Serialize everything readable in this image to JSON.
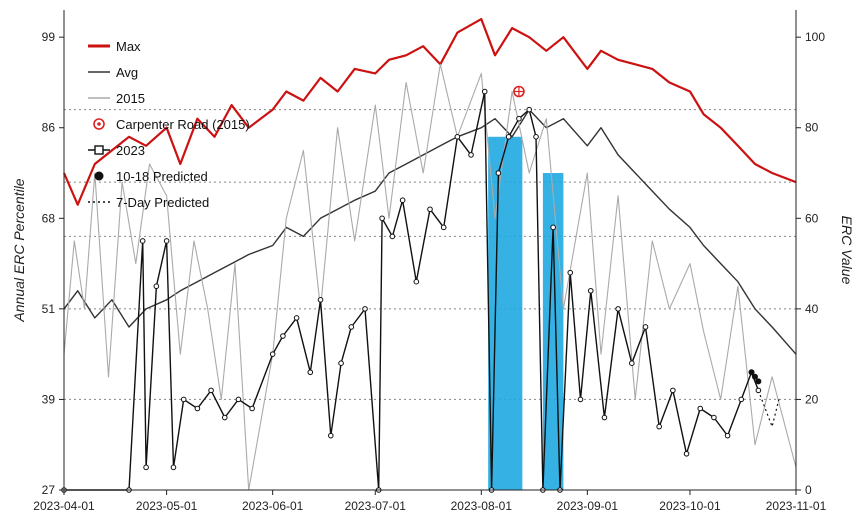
{
  "chart_data": {
    "type": "line",
    "title": "",
    "xlabel": "",
    "ylabel_left": "Annual ERC Percentile",
    "ylabel_right": "ERC Value",
    "x_tick_labels": [
      "2023-04-01",
      "2023-05-01",
      "2023-06-01",
      "2023-07-01",
      "2023-08-01",
      "2023-09-01",
      "2023-10-01",
      "2023-11-01"
    ],
    "left_tick_labels": [
      "27",
      "39",
      "51",
      "68",
      "86",
      "99"
    ],
    "left_tick_erc_positions": [
      0,
      20,
      40,
      60,
      80,
      100
    ],
    "right_tick_labels": [
      "0",
      "20",
      "40",
      "60",
      "80",
      "100"
    ],
    "ylim": [
      0,
      106
    ],
    "xlim": [
      "2023-04-01",
      "2023-11-01"
    ],
    "grid": "horizontal dotted at 20, 40, 60, 80 and ~84 ERC",
    "reference_levels": [
      20,
      40,
      56,
      68,
      84
    ],
    "legend": {
      "placement": "top-left",
      "entries": [
        {
          "label": "Max",
          "color": "#cc1111",
          "style": "thick-line"
        },
        {
          "label": "Avg",
          "color": "#333333",
          "style": "line"
        },
        {
          "label": "2015",
          "color": "#aaaaaa",
          "style": "line"
        },
        {
          "label": "Carpenter Road (2015)",
          "color": "#dd2222",
          "style": "target-marker"
        },
        {
          "label": "2023",
          "color": "#111111",
          "style": "line-open-square"
        },
        {
          "label": "10-18 Predicted",
          "color": "#111111",
          "style": "filled-circle"
        },
        {
          "label": "7-Day Predicted",
          "color": "#111111",
          "style": "dotted"
        }
      ]
    },
    "series": [
      {
        "name": "Max",
        "color": "#cc1111",
        "x": [
          "2023-04-01",
          "2023-04-05",
          "2023-04-10",
          "2023-04-15",
          "2023-04-20",
          "2023-04-25",
          "2023-05-01",
          "2023-05-05",
          "2023-05-10",
          "2023-05-15",
          "2023-05-20",
          "2023-05-25",
          "2023-06-01",
          "2023-06-05",
          "2023-06-10",
          "2023-06-15",
          "2023-06-20",
          "2023-06-25",
          "2023-07-01",
          "2023-07-05",
          "2023-07-10",
          "2023-07-15",
          "2023-07-20",
          "2023-07-25",
          "2023-08-01",
          "2023-08-05",
          "2023-08-10",
          "2023-08-15",
          "2023-08-20",
          "2023-08-25",
          "2023-09-01",
          "2023-09-05",
          "2023-09-10",
          "2023-09-15",
          "2023-09-20",
          "2023-09-25",
          "2023-10-01",
          "2023-10-05",
          "2023-10-10",
          "2023-10-15",
          "2023-10-20",
          "2023-10-25",
          "2023-11-01"
        ],
        "y": [
          70,
          63,
          72,
          75,
          78,
          76,
          80,
          72,
          82,
          78,
          85,
          80,
          84,
          88,
          86,
          91,
          88,
          93,
          92,
          95,
          96,
          98,
          94,
          101,
          104,
          96,
          102,
          100,
          97,
          100,
          93,
          97,
          95,
          94,
          93,
          90,
          88,
          83,
          80,
          76,
          72,
          70,
          68
        ]
      },
      {
        "name": "Avg",
        "color": "#333333",
        "x": [
          "2023-04-01",
          "2023-04-05",
          "2023-04-10",
          "2023-04-15",
          "2023-04-20",
          "2023-04-25",
          "2023-05-01",
          "2023-05-05",
          "2023-05-10",
          "2023-05-15",
          "2023-05-20",
          "2023-05-25",
          "2023-06-01",
          "2023-06-05",
          "2023-06-10",
          "2023-06-15",
          "2023-06-20",
          "2023-06-25",
          "2023-07-01",
          "2023-07-05",
          "2023-07-10",
          "2023-07-15",
          "2023-07-20",
          "2023-07-25",
          "2023-08-01",
          "2023-08-05",
          "2023-08-10",
          "2023-08-15",
          "2023-08-20",
          "2023-08-25",
          "2023-09-01",
          "2023-09-05",
          "2023-09-10",
          "2023-09-15",
          "2023-09-20",
          "2023-09-25",
          "2023-10-01",
          "2023-10-05",
          "2023-10-10",
          "2023-10-15",
          "2023-10-20",
          "2023-10-25",
          "2023-11-01"
        ],
        "y": [
          40,
          44,
          38,
          42,
          36,
          40,
          42,
          44,
          46,
          48,
          50,
          52,
          54,
          58,
          56,
          60,
          62,
          64,
          66,
          70,
          72,
          74,
          76,
          78,
          80,
          82,
          78,
          84,
          80,
          82,
          76,
          80,
          74,
          70,
          66,
          62,
          58,
          54,
          50,
          46,
          40,
          36,
          30
        ]
      },
      {
        "name": "2015",
        "color": "#aaaaaa",
        "x": [
          "2023-04-01",
          "2023-04-04",
          "2023-04-07",
          "2023-04-10",
          "2023-04-14",
          "2023-04-18",
          "2023-04-22",
          "2023-04-26",
          "2023-05-01",
          "2023-05-05",
          "2023-05-09",
          "2023-05-13",
          "2023-05-17",
          "2023-05-21",
          "2023-05-25",
          "2023-06-01",
          "2023-06-05",
          "2023-06-10",
          "2023-06-15",
          "2023-06-20",
          "2023-06-25",
          "2023-07-01",
          "2023-07-05",
          "2023-07-10",
          "2023-07-15",
          "2023-07-20",
          "2023-07-25",
          "2023-08-01",
          "2023-08-05",
          "2023-08-10",
          "2023-08-15",
          "2023-08-20",
          "2023-08-25",
          "2023-09-01",
          "2023-09-05",
          "2023-09-10",
          "2023-09-15",
          "2023-09-20",
          "2023-09-25",
          "2023-10-01",
          "2023-10-05",
          "2023-10-10",
          "2023-10-15",
          "2023-10-20",
          "2023-10-25",
          "2023-11-01"
        ],
        "y": [
          30,
          55,
          40,
          70,
          25,
          68,
          50,
          72,
          65,
          30,
          55,
          40,
          20,
          50,
          0,
          30,
          60,
          75,
          40,
          80,
          55,
          85,
          60,
          90,
          70,
          94,
          78,
          92,
          60,
          88,
          70,
          82,
          40,
          70,
          30,
          65,
          20,
          55,
          40,
          50,
          35,
          20,
          45,
          10,
          25,
          5
        ]
      },
      {
        "name": "2023",
        "color": "#111111",
        "x": [
          "2023-04-01",
          "2023-04-20",
          "2023-04-24",
          "2023-04-25",
          "2023-04-28",
          "2023-05-01",
          "2023-05-03",
          "2023-05-06",
          "2023-05-10",
          "2023-05-14",
          "2023-05-18",
          "2023-05-22",
          "2023-05-26",
          "2023-06-01",
          "2023-06-04",
          "2023-06-08",
          "2023-06-12",
          "2023-06-15",
          "2023-06-18",
          "2023-06-21",
          "2023-06-24",
          "2023-06-28",
          "2023-07-02",
          "2023-07-03",
          "2023-07-06",
          "2023-07-09",
          "2023-07-13",
          "2023-07-17",
          "2023-07-21",
          "2023-07-25",
          "2023-07-29",
          "2023-08-02",
          "2023-08-04",
          "2023-08-06",
          "2023-08-09",
          "2023-08-12",
          "2023-08-15",
          "2023-08-17",
          "2023-08-19",
          "2023-08-22",
          "2023-08-24",
          "2023-08-27",
          "2023-08-30",
          "2023-09-02",
          "2023-09-06",
          "2023-09-10",
          "2023-09-14",
          "2023-09-18",
          "2023-09-22",
          "2023-09-26",
          "2023-09-30",
          "2023-10-04",
          "2023-10-08",
          "2023-10-12",
          "2023-10-16",
          "2023-10-19",
          "2023-10-21"
        ],
        "y": [
          0,
          0,
          55,
          5,
          45,
          55,
          5,
          20,
          18,
          22,
          16,
          20,
          18,
          30,
          34,
          38,
          26,
          42,
          12,
          28,
          36,
          40,
          0,
          60,
          56,
          64,
          46,
          62,
          58,
          78,
          74,
          88,
          0,
          70,
          78,
          82,
          84,
          78,
          0,
          58,
          0,
          48,
          20,
          44,
          16,
          40,
          28,
          36,
          14,
          22,
          8,
          18,
          16,
          12,
          20,
          26,
          22
        ]
      },
      {
        "name": "10-18 Predicted",
        "color": "#111111",
        "x": [
          "2023-10-19",
          "2023-10-20",
          "2023-10-21"
        ],
        "y": [
          26,
          25,
          24
        ]
      },
      {
        "name": "7-Day Predicted",
        "color": "#111111",
        "x": [
          "2023-10-21",
          "2023-10-23",
          "2023-10-25",
          "2023-10-27"
        ],
        "y": [
          22,
          18,
          14,
          20
        ]
      }
    ],
    "highlight_bands": [
      {
        "x_start": "2023-08-03",
        "x_end": "2023-08-13",
        "y_top": 78,
        "color": "#1fa8e0"
      },
      {
        "x_start": "2023-08-19",
        "x_end": "2023-08-25",
        "y_top": 70,
        "color": "#1fa8e0"
      }
    ],
    "annotations": [
      {
        "label": "Carpenter Road (2015)",
        "x": "2023-08-12",
        "y": 88,
        "color": "#dd2222"
      }
    ]
  }
}
